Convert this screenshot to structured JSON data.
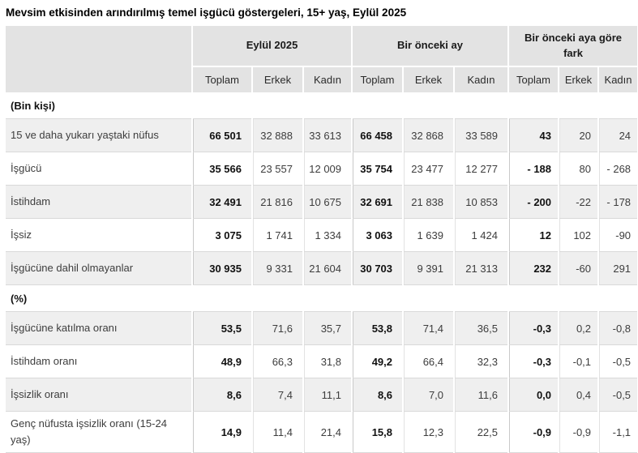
{
  "title": "Mevsim etkisinden arındırılmış temel işgücü göstergeleri, 15+ yaş, Eylül 2025",
  "chart_data": {
    "type": "table",
    "title": "Mevsim etkisinden arındırılmış temel işgücü göstergeleri, 15+ yaş, Eylül 2025",
    "column_groups": [
      {
        "label": "Eylül 2025",
        "columns": [
          "Toplam",
          "Erkek",
          "Kadın"
        ]
      },
      {
        "label": "Bir önceki ay",
        "columns": [
          "Toplam",
          "Erkek",
          "Kadın"
        ]
      },
      {
        "label": "Bir önceki aya göre fark",
        "columns": [
          "Toplam",
          "Erkek",
          "Kadın"
        ]
      }
    ],
    "sections": [
      {
        "label": "(Bin kişi)",
        "rows": [
          {
            "label": "15 ve daha yukarı yaştaki nüfus",
            "values": [
              "66 501",
              "32 888",
              "33 613",
              "66 458",
              "32 868",
              "33 589",
              "43",
              "20",
              "24"
            ]
          },
          {
            "label": "İşgücü",
            "values": [
              "35 566",
              "23 557",
              "12 009",
              "35 754",
              "23 477",
              "12 277",
              "- 188",
              "80",
              "- 268"
            ]
          },
          {
            "label": "İstihdam",
            "values": [
              "32 491",
              "21 816",
              "10 675",
              "32 691",
              "21 838",
              "10 853",
              "- 200",
              "-22",
              "- 178"
            ]
          },
          {
            "label": "İşsiz",
            "values": [
              "3 075",
              "1 741",
              "1 334",
              "3 063",
              "1 639",
              "1 424",
              "12",
              "102",
              "-90"
            ]
          },
          {
            "label": "İşgücüne dahil olmayanlar",
            "values": [
              "30 935",
              "9 331",
              "21 604",
              "30 703",
              "9 391",
              "21 313",
              "232",
              "-60",
              "291"
            ]
          }
        ]
      },
      {
        "label": "(%)",
        "rows": [
          {
            "label": "İşgücüne katılma oranı",
            "values": [
              "53,5",
              "71,6",
              "35,7",
              "53,8",
              "71,4",
              "36,5",
              "-0,3",
              "0,2",
              "-0,8"
            ]
          },
          {
            "label": "İstihdam oranı",
            "values": [
              "48,9",
              "66,3",
              "31,8",
              "49,2",
              "66,4",
              "32,3",
              "-0,3",
              "-0,1",
              "-0,5"
            ]
          },
          {
            "label": "İşsizlik oranı",
            "values": [
              "8,6",
              "7,4",
              "11,1",
              "8,6",
              "7,0",
              "11,6",
              "0,0",
              "0,4",
              "-0,5"
            ]
          },
          {
            "label": "Genç nüfusta işsizlik oranı (15-24 yaş)",
            "values": [
              "14,9",
              "11,4",
              "21,4",
              "15,8",
              "12,3",
              "22,5",
              "-0,9",
              "-0,9",
              "-1,1"
            ]
          }
        ]
      }
    ],
    "layout": {
      "bold_columns": [
        "Toplam"
      ],
      "row_striping": "alternating per section, first data row shaded"
    }
  },
  "colors": {
    "header_bg": "#e3e3e3",
    "stripe_bg": "#efefef",
    "row_border": "#d9d9d9",
    "group_border": "#c9c9c9",
    "text": "#3d3d3d",
    "text_bold": "#111111",
    "title_text": "#000000"
  }
}
